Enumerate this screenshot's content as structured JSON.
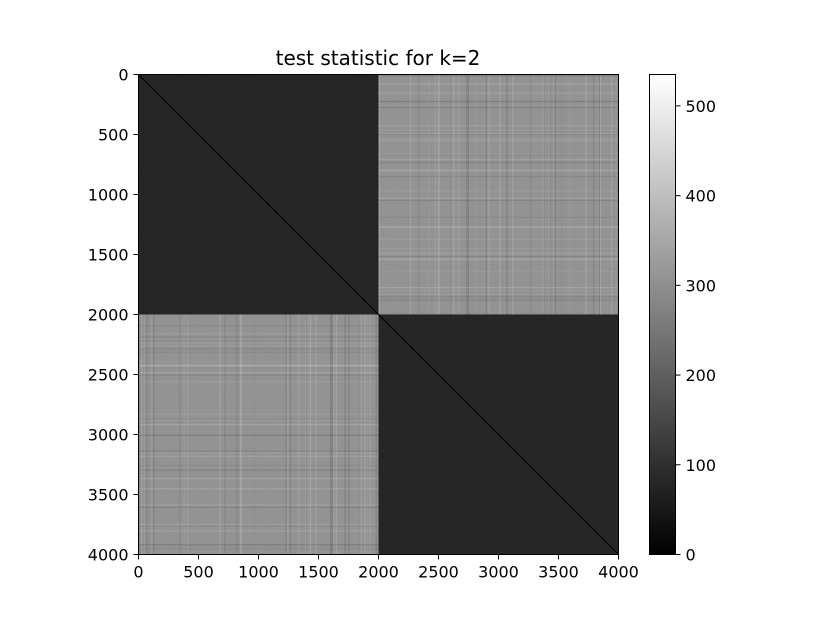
{
  "chart_data": {
    "type": "heatmap",
    "title": "test statistic for k=2",
    "xlabel": "",
    "ylabel": "",
    "xlim": [
      0,
      4000
    ],
    "ylim": [
      4000,
      0
    ],
    "x_ticks": [
      "0",
      "500",
      "1000",
      "1500",
      "2000",
      "2500",
      "3000",
      "3500",
      "4000"
    ],
    "y_ticks": [
      "0",
      "500",
      "1000",
      "1500",
      "2000",
      "2500",
      "3000",
      "3500",
      "4000"
    ],
    "colormap": "gray",
    "colorbar": {
      "range": [
        0,
        535
      ],
      "ticks": [
        "0",
        "100",
        "200",
        "300",
        "400",
        "500"
      ]
    },
    "blocks": [
      {
        "x": [
          0,
          2000
        ],
        "y": [
          0,
          2000
        ],
        "level": 75
      },
      {
        "x": [
          2000,
          4000
        ],
        "y": [
          0,
          2000
        ],
        "level": 300
      },
      {
        "x": [
          0,
          2000
        ],
        "y": [
          2000,
          4000
        ],
        "level": 300
      },
      {
        "x": [
          2000,
          4000
        ],
        "y": [
          2000,
          4000
        ],
        "level": 75
      }
    ],
    "diagonal_value": 0,
    "grid": false
  }
}
